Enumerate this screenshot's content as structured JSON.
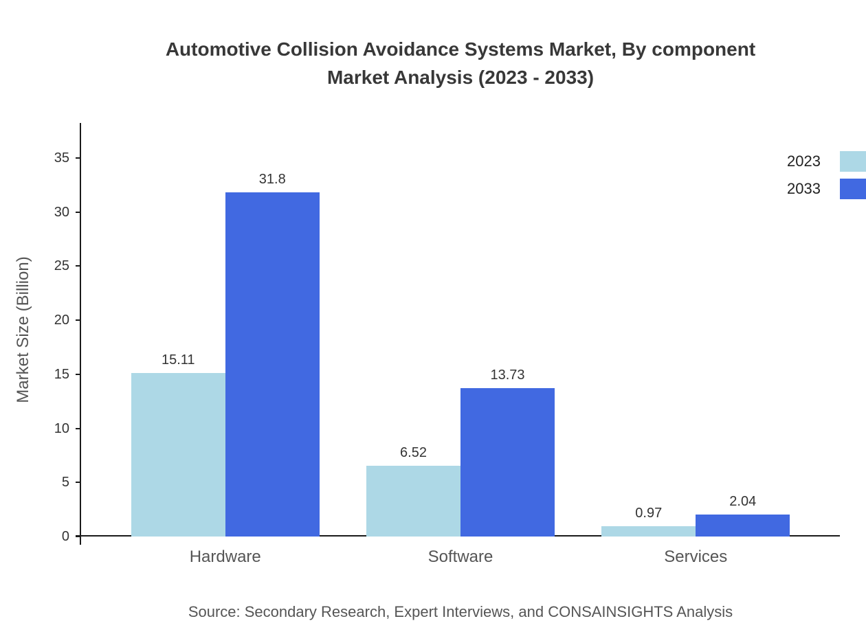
{
  "title_lines": [
    "Automotive Collision Avoidance Systems Market, By component",
    "Market Analysis (2023 - 2033)"
  ],
  "source": "Source: Secondary Research, Expert Interviews, and CONSAINSIGHTS Analysis",
  "chart_data": {
    "type": "bar",
    "title": "Automotive Collision Avoidance Systems Market, By component Market Analysis (2023 - 2033)",
    "categories": [
      "Hardware",
      "Software",
      "Services"
    ],
    "series": [
      {
        "name": "2023",
        "color": "#ADD8E6",
        "values": [
          15.11,
          6.52,
          0.97
        ],
        "labels": [
          "15.11",
          "6.52",
          "0.97"
        ]
      },
      {
        "name": "2033",
        "color": "#4169E1",
        "values": [
          31.8,
          13.73,
          2.04
        ],
        "labels": [
          "31.8",
          "13.73",
          "2.04"
        ]
      }
    ],
    "xlabel": "",
    "ylabel": "Market Size (Billion)",
    "ylim": [
      0,
      35
    ],
    "yticks": [
      0,
      5,
      10,
      15,
      20,
      25,
      30,
      35
    ],
    "grid": false,
    "legend_position": "top-right",
    "axis_color": "#1a1a1a"
  }
}
